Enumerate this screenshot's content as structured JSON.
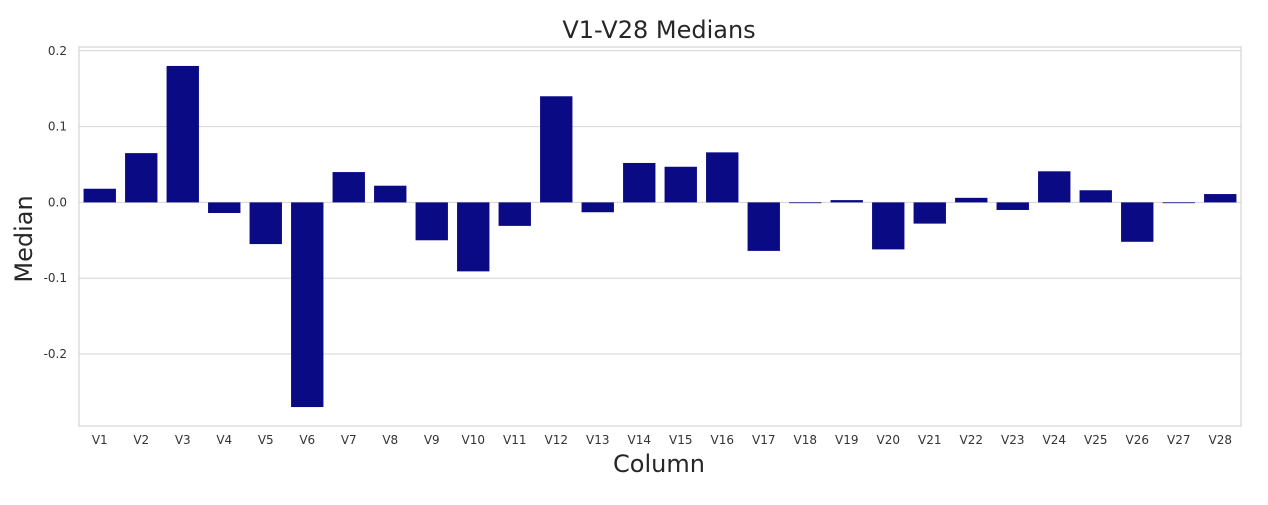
{
  "chart_data": {
    "type": "bar",
    "title": "V1-V28 Medians",
    "xlabel": "Column",
    "ylabel": "Median",
    "categories": [
      "V1",
      "V2",
      "V3",
      "V4",
      "V5",
      "V6",
      "V7",
      "V8",
      "V9",
      "V10",
      "V11",
      "V12",
      "V13",
      "V14",
      "V15",
      "V16",
      "V17",
      "V18",
      "V19",
      "V20",
      "V21",
      "V22",
      "V23",
      "V24",
      "V25",
      "V26",
      "V27",
      "V28"
    ],
    "values": [
      0.018,
      0.065,
      0.18,
      -0.014,
      -0.055,
      -0.27,
      0.04,
      0.022,
      -0.05,
      -0.091,
      -0.031,
      0.14,
      -0.013,
      0.052,
      0.047,
      0.066,
      -0.064,
      0.0,
      0.003,
      -0.062,
      -0.028,
      0.006,
      -0.01,
      0.041,
      0.016,
      -0.052,
      0.0,
      0.011
    ],
    "ylim": [
      -0.295,
      0.205
    ],
    "yticks": [
      0.2,
      0.1,
      0.0,
      -0.1,
      -0.2
    ],
    "ytick_labels": [
      "0.2",
      "0.1",
      "0.0",
      "-0.1",
      "-0.2"
    ],
    "grid": "y",
    "bar_color": "#0a0a84",
    "grid_color": "#d5d5d5"
  }
}
